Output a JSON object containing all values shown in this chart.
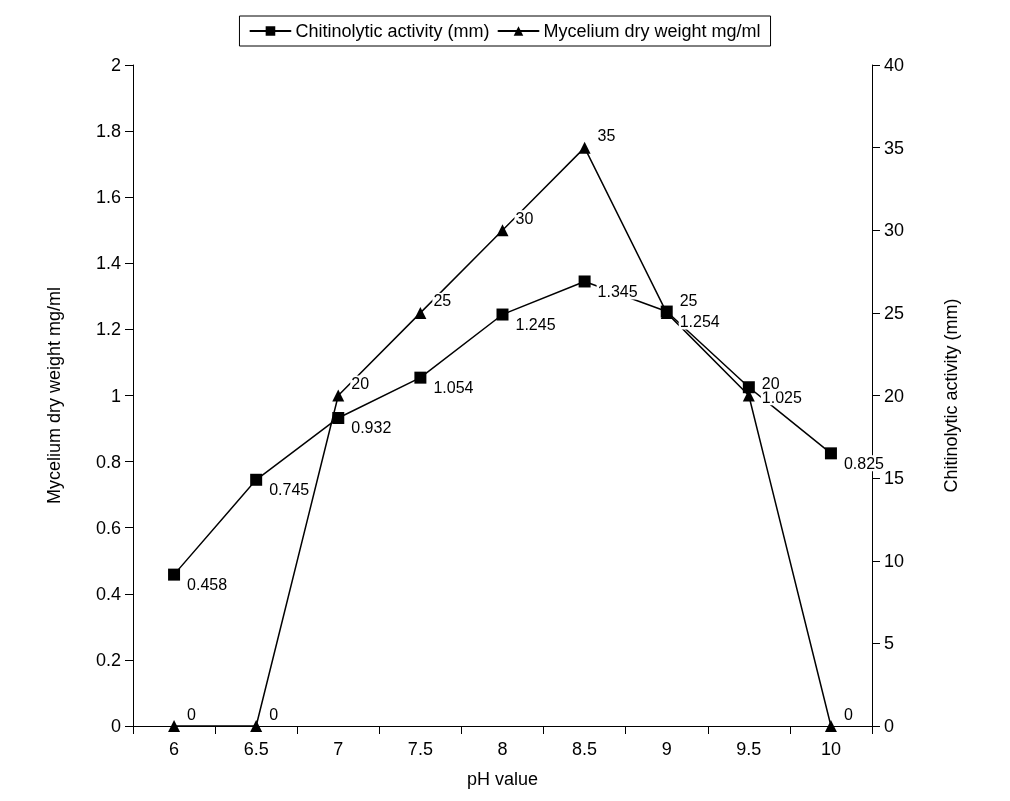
{
  "chart_data": {
    "type": "line",
    "xlabel": "pH value",
    "ylabel": "Mycelium dry weight mg/ml",
    "y2label": "Chitinolytic activity (mm)",
    "categories": [
      "6",
      "6.5",
      "7",
      "7.5",
      "8",
      "8.5",
      "9",
      "9.5",
      "10"
    ],
    "series": [
      {
        "name": "Chitinolytic activity (mm)",
        "color": "#000000",
        "marker": "square",
        "values": [
          0.458,
          0.745,
          0.932,
          1.054,
          1.245,
          1.345,
          1.254,
          1.025,
          0.825
        ]
      },
      {
        "name": "Mycelium dry weight mg/ml",
        "color": "#000000",
        "marker": "triangle",
        "axis": "y2",
        "values": [
          0,
          0,
          20,
          25,
          30,
          35,
          25,
          20,
          0
        ]
      }
    ],
    "ylim": [
      0,
      2
    ],
    "yticks": [
      0,
      0.2,
      0.4,
      0.6,
      0.8,
      1,
      1.2,
      1.4,
      1.6,
      1.8,
      2
    ],
    "y2lim": [
      0,
      40
    ],
    "y2ticks": [
      0,
      5,
      10,
      15,
      20,
      25,
      30,
      35,
      40
    ],
    "data_labels": true,
    "grid": false,
    "legend": "top",
    "line_style": "solid"
  }
}
